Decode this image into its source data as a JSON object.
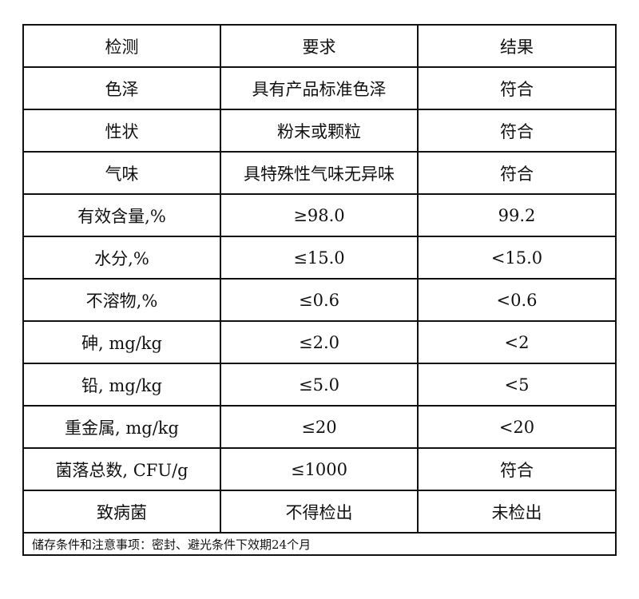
{
  "header": [
    "检测",
    "要求",
    "结果"
  ],
  "rows": [
    [
      "色泽",
      "具有产品标准色泽",
      "符合"
    ],
    [
      "性状",
      "粉末或颗粒",
      "符合"
    ],
    [
      "气味",
      "具特殊性气味无异味",
      "符合"
    ],
    [
      "有效含量,%",
      "≥98.0",
      "99.2"
    ],
    [
      "水分,%",
      "≤15.0",
      "<15.0"
    ],
    [
      "不溶物,%",
      "≤0.6",
      "<0.6"
    ],
    [
      "砷, mg/kg",
      "≤2.0",
      "<2"
    ],
    [
      "铅, mg/kg",
      "≤5.0",
      "<5"
    ],
    [
      "重金属, mg/kg",
      "≤20",
      "<20"
    ],
    [
      "菌落总数, CFU/g",
      "≤1000",
      "符合"
    ],
    [
      "致病菌",
      "不得检出",
      "未检出"
    ]
  ],
  "footer": "储存条件和注意事项：密封、避光条件下效期24个月"
}
